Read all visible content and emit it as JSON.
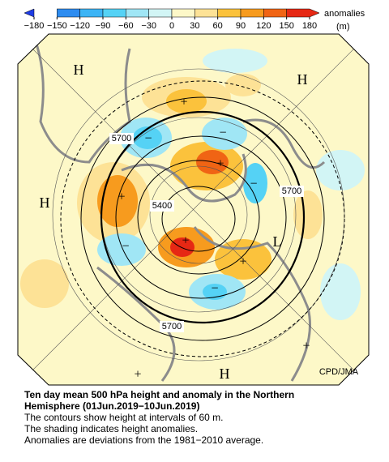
{
  "colorbar": {
    "ticks": [
      {
        "value": -180,
        "label": "−180"
      },
      {
        "value": -150,
        "label": "−150"
      },
      {
        "value": -120,
        "label": "−120"
      },
      {
        "value": -90,
        "label": "−90"
      },
      {
        "value": -60,
        "label": "−60"
      },
      {
        "value": -30,
        "label": "−30"
      },
      0,
      30,
      60,
      90,
      120,
      150,
      180
    ],
    "colors": [
      "#1e3ce6",
      "#2d8cf0",
      "#3cb4f5",
      "#55d2f5",
      "#a0e6f5",
      "#d2f5f5",
      "#fdf8c8",
      "#fde296",
      "#fbc23c",
      "#f79b1e",
      "#f06414",
      "#e62814"
    ],
    "label": "anomalies",
    "unit": "(m)"
  },
  "map": {
    "markers": [
      "H",
      "H",
      "H",
      "H",
      "L",
      "+",
      "+",
      "+",
      "+",
      "+",
      "+",
      "+",
      "−",
      "−",
      "−",
      "−",
      "−"
    ],
    "contour_labels": [
      5700,
      5700,
      5400,
      5700
    ],
    "credit": "CPD/JMA"
  },
  "caption": {
    "title_lines": [
      "Ten day mean 500 hPa height and anomaly in the Northern",
      "Hemisphere (01Jun.2019−10Jun.2019)"
    ],
    "lines": [
      "The contours show height at intervals of 60 m.",
      "The shading indicates height anomalies.",
      "Anomalies are deviations from the 1981−2010 average."
    ]
  }
}
